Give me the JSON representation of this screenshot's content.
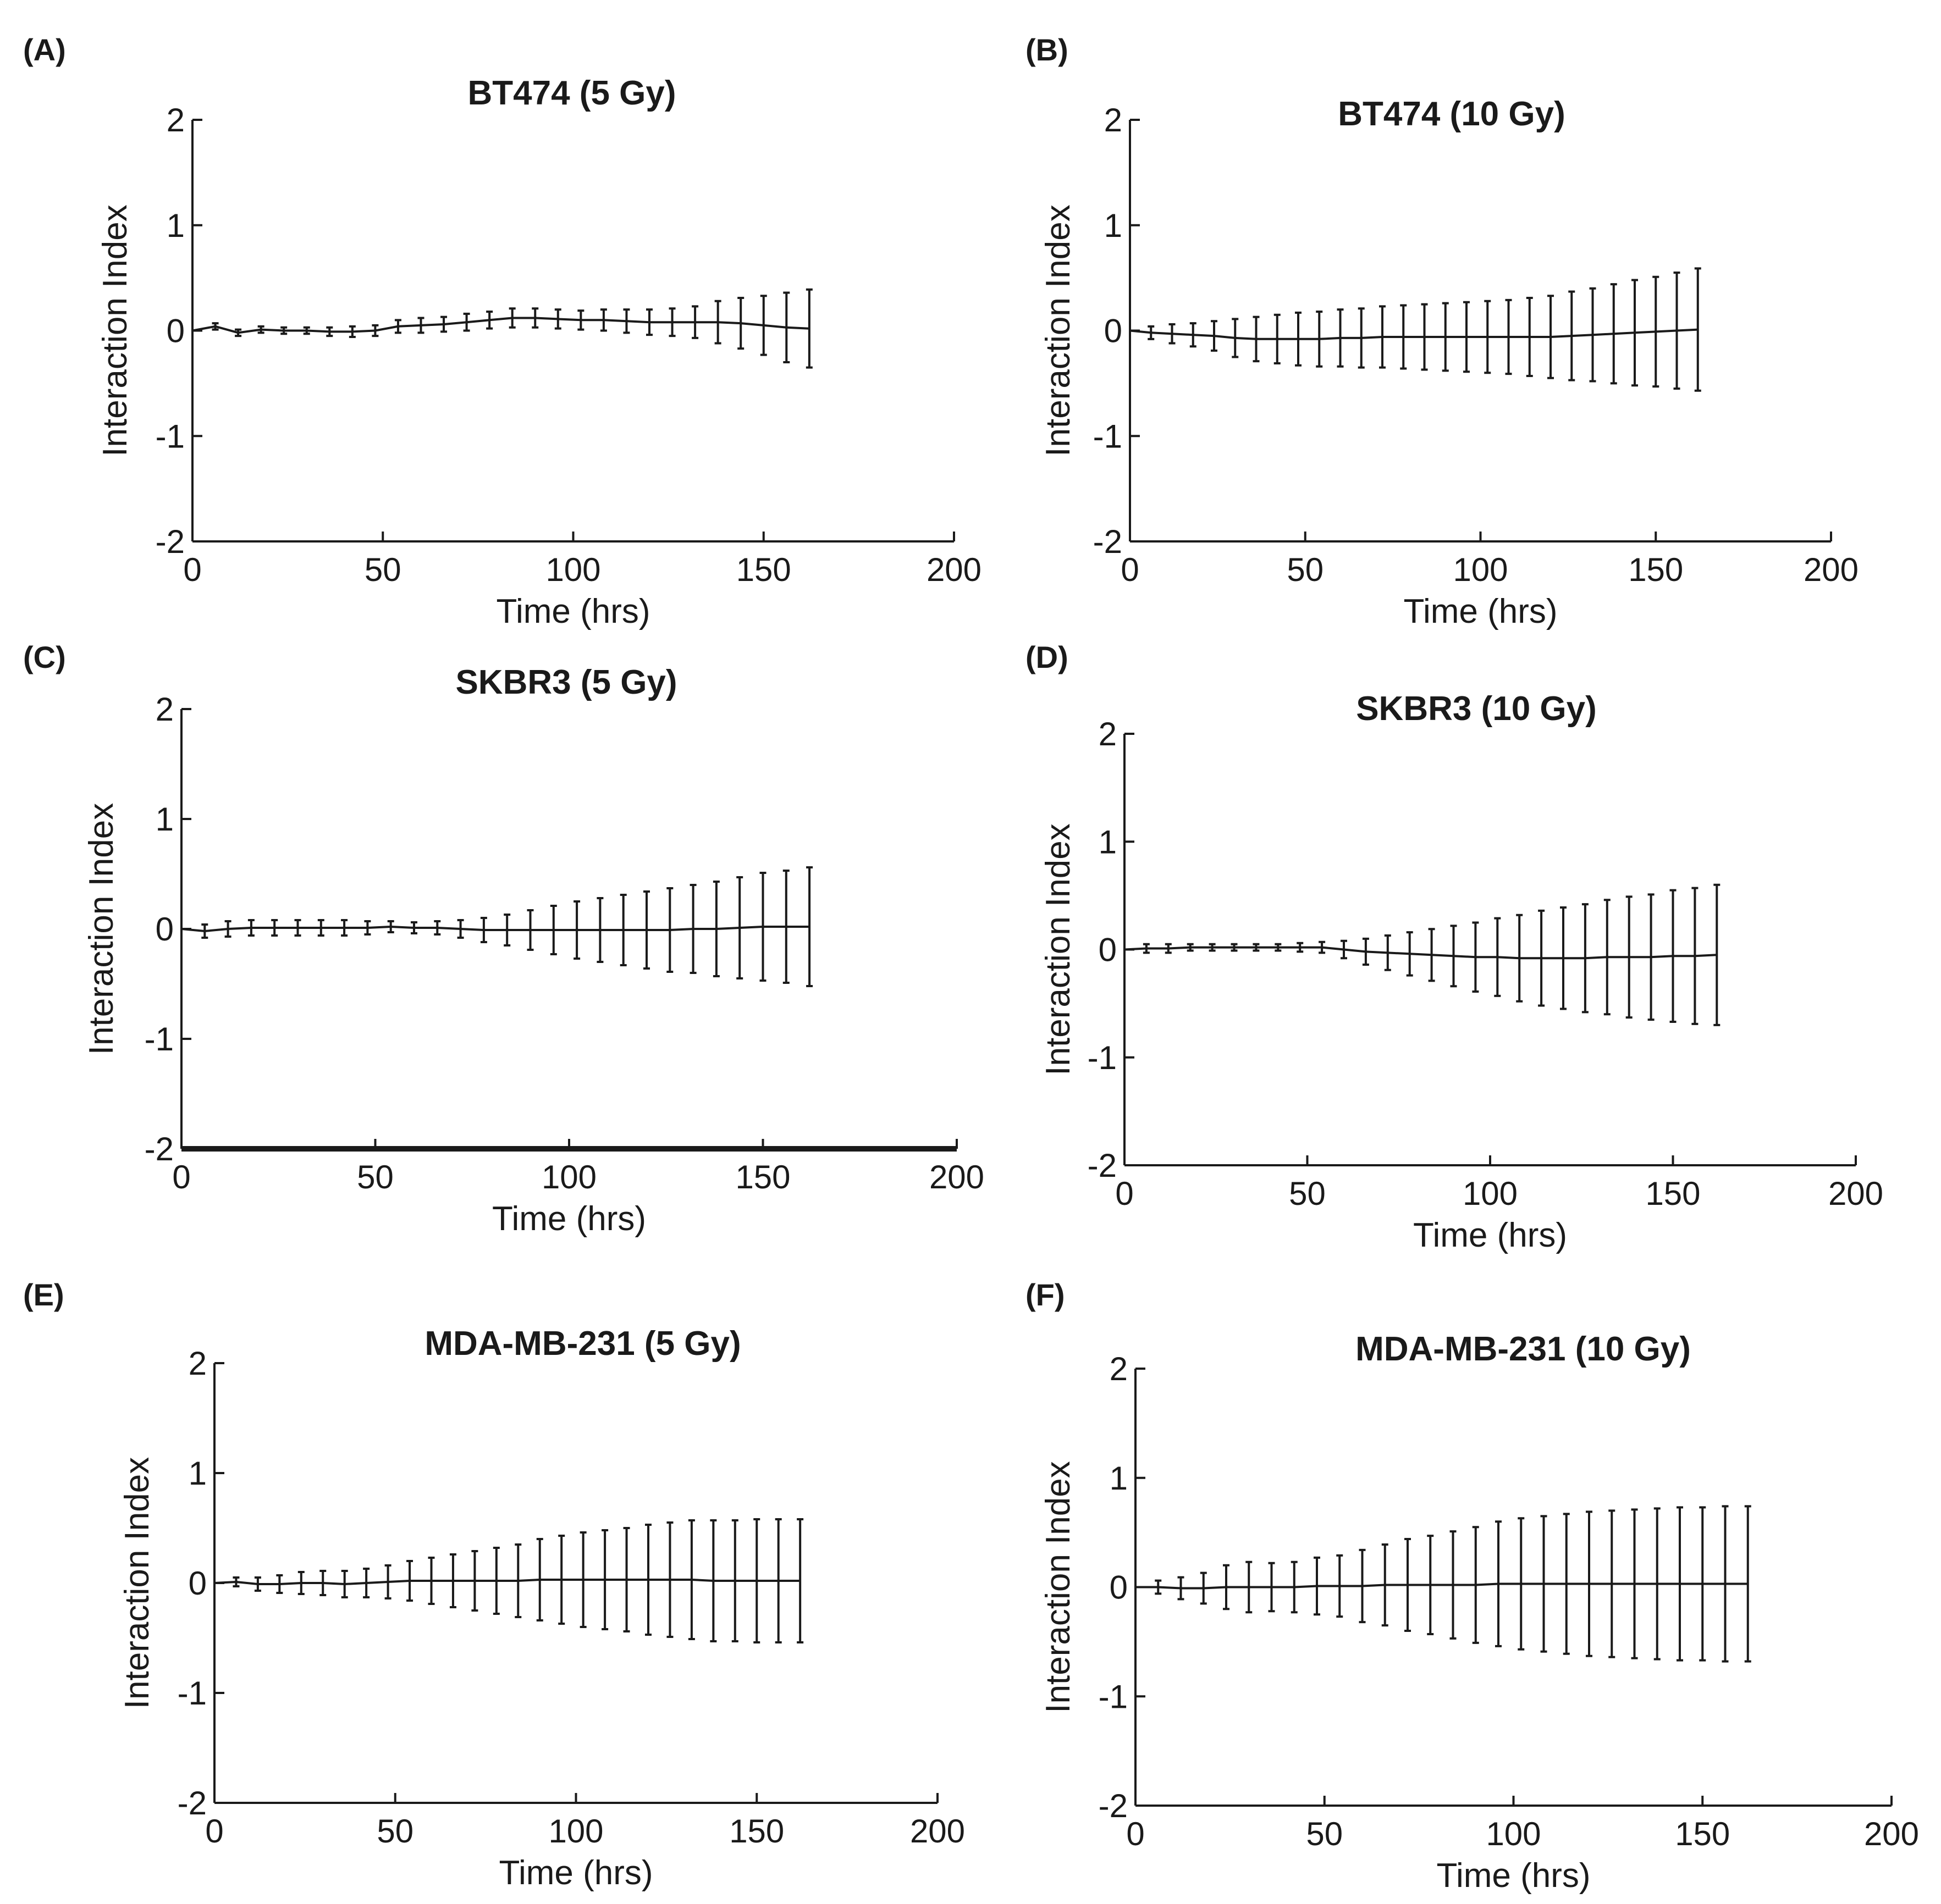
{
  "chart_data": [
    {
      "panel": "(A)",
      "type": "line",
      "title": "BT474 (5 Gy)",
      "xlabel": "Time (hrs)",
      "ylabel": "Interaction Index",
      "xlim": [
        0,
        200
      ],
      "ylim": [
        -2,
        2
      ],
      "xticks": [
        "0",
        "50",
        "100",
        "150",
        "200"
      ],
      "yticks": [
        "-2",
        "-1",
        "0",
        "1",
        "2"
      ],
      "grid": false,
      "x": [
        0,
        6,
        12,
        18,
        24,
        30,
        36,
        42,
        48,
        54,
        60,
        66,
        72,
        78,
        84,
        90,
        96,
        102,
        108,
        114,
        120,
        126,
        132,
        138,
        144,
        150,
        156,
        162
      ],
      "series": [
        {
          "values": [
            0.0,
            0.04,
            -0.02,
            0.01,
            0.0,
            0.0,
            -0.01,
            -0.01,
            0.0,
            0.04,
            0.05,
            0.06,
            0.08,
            0.1,
            0.12,
            0.12,
            0.11,
            0.1,
            0.1,
            0.09,
            0.08,
            0.08,
            0.08,
            0.08,
            0.07,
            0.05,
            0.03,
            0.02
          ],
          "errors": [
            0.0,
            0.03,
            0.03,
            0.03,
            0.03,
            0.03,
            0.04,
            0.05,
            0.05,
            0.06,
            0.07,
            0.07,
            0.08,
            0.08,
            0.09,
            0.09,
            0.09,
            0.09,
            0.1,
            0.11,
            0.12,
            0.13,
            0.15,
            0.2,
            0.24,
            0.28,
            0.33,
            0.37
          ]
        }
      ]
    },
    {
      "panel": "(B)",
      "type": "line",
      "title": "BT474 (10 Gy)",
      "xlabel": "Time (hrs)",
      "ylabel": "Interaction Index",
      "xlim": [
        0,
        200
      ],
      "ylim": [
        -2,
        2
      ],
      "xticks": [
        "0",
        "50",
        "100",
        "150",
        "200"
      ],
      "yticks": [
        "-2",
        "-1",
        "0",
        "1",
        "2"
      ],
      "grid": false,
      "x": [
        0,
        6,
        12,
        18,
        24,
        30,
        36,
        42,
        48,
        54,
        60,
        66,
        72,
        78,
        84,
        90,
        96,
        102,
        108,
        114,
        120,
        126,
        132,
        138,
        144,
        150,
        156,
        162
      ],
      "series": [
        {
          "values": [
            0.0,
            -0.02,
            -0.03,
            -0.04,
            -0.05,
            -0.07,
            -0.08,
            -0.08,
            -0.08,
            -0.08,
            -0.07,
            -0.07,
            -0.06,
            -0.06,
            -0.06,
            -0.06,
            -0.06,
            -0.06,
            -0.06,
            -0.06,
            -0.06,
            -0.05,
            -0.04,
            -0.03,
            -0.02,
            -0.01,
            0.0,
            0.01
          ],
          "errors": [
            0.0,
            0.06,
            0.09,
            0.11,
            0.14,
            0.18,
            0.21,
            0.23,
            0.25,
            0.26,
            0.27,
            0.28,
            0.29,
            0.3,
            0.31,
            0.32,
            0.33,
            0.34,
            0.35,
            0.37,
            0.39,
            0.42,
            0.44,
            0.47,
            0.5,
            0.52,
            0.55,
            0.58
          ]
        }
      ]
    },
    {
      "panel": "(C)",
      "type": "line",
      "title": "SKBR3 (5 Gy)",
      "xlabel": "Time (hrs)",
      "ylabel": "Interaction Index",
      "xlim": [
        0,
        200
      ],
      "ylim": [
        -2,
        2
      ],
      "xticks": [
        "0",
        "50",
        "100",
        "150",
        "200"
      ],
      "yticks": [
        "-2",
        "-1",
        "0",
        "1",
        "2"
      ],
      "grid": false,
      "x": [
        0,
        6,
        12,
        18,
        24,
        30,
        36,
        42,
        48,
        54,
        60,
        66,
        72,
        78,
        84,
        90,
        96,
        102,
        108,
        114,
        120,
        126,
        132,
        138,
        144,
        150,
        156,
        162
      ],
      "series": [
        {
          "values": [
            0.0,
            -0.02,
            0.0,
            0.01,
            0.01,
            0.01,
            0.01,
            0.01,
            0.01,
            0.02,
            0.01,
            0.01,
            0.0,
            -0.01,
            -0.01,
            -0.01,
            -0.01,
            -0.01,
            -0.01,
            -0.01,
            -0.01,
            -0.01,
            0.0,
            0.0,
            0.01,
            0.02,
            0.02,
            0.02
          ],
          "errors": [
            0.0,
            0.06,
            0.07,
            0.07,
            0.07,
            0.07,
            0.07,
            0.07,
            0.06,
            0.05,
            0.05,
            0.06,
            0.08,
            0.11,
            0.14,
            0.18,
            0.22,
            0.26,
            0.29,
            0.32,
            0.35,
            0.38,
            0.4,
            0.43,
            0.46,
            0.49,
            0.51,
            0.54
          ]
        }
      ]
    },
    {
      "panel": "(D)",
      "type": "line",
      "title": "SKBR3 (10 Gy)",
      "xlabel": "Time (hrs)",
      "ylabel": "Interaction Index",
      "xlim": [
        0,
        200
      ],
      "ylim": [
        -2,
        2
      ],
      "xticks": [
        "0",
        "50",
        "100",
        "150",
        "200"
      ],
      "yticks": [
        "-2",
        "-1",
        "0",
        "1",
        "2"
      ],
      "grid": false,
      "x": [
        0,
        6,
        12,
        18,
        24,
        30,
        36,
        42,
        48,
        54,
        60,
        66,
        72,
        78,
        84,
        90,
        96,
        102,
        108,
        114,
        120,
        126,
        132,
        138,
        144,
        150,
        156,
        162
      ],
      "series": [
        {
          "values": [
            0.0,
            0.01,
            0.01,
            0.02,
            0.02,
            0.02,
            0.02,
            0.02,
            0.02,
            0.02,
            0.0,
            -0.02,
            -0.03,
            -0.04,
            -0.05,
            -0.06,
            -0.07,
            -0.07,
            -0.08,
            -0.08,
            -0.08,
            -0.08,
            -0.07,
            -0.07,
            -0.07,
            -0.06,
            -0.06,
            -0.05
          ],
          "errors": [
            0.0,
            0.04,
            0.04,
            0.03,
            0.03,
            0.03,
            0.03,
            0.03,
            0.04,
            0.05,
            0.08,
            0.12,
            0.16,
            0.2,
            0.24,
            0.28,
            0.32,
            0.36,
            0.4,
            0.44,
            0.47,
            0.5,
            0.53,
            0.56,
            0.58,
            0.61,
            0.63,
            0.65
          ]
        }
      ]
    },
    {
      "panel": "(E)",
      "type": "line",
      "title": "MDA-MB-231 (5 Gy)",
      "xlabel": "Time (hrs)",
      "ylabel": "Interaction Index",
      "xlim": [
        0,
        200
      ],
      "ylim": [
        -2,
        2
      ],
      "xticks": [
        "0",
        "50",
        "100",
        "150",
        "200"
      ],
      "yticks": [
        "-2",
        "-1",
        "0",
        "1",
        "2"
      ],
      "grid": false,
      "x": [
        0,
        6,
        12,
        18,
        24,
        30,
        36,
        42,
        48,
        54,
        60,
        66,
        72,
        78,
        84,
        90,
        96,
        102,
        108,
        114,
        120,
        126,
        132,
        138,
        144,
        150,
        156,
        162
      ],
      "series": [
        {
          "values": [
            0.0,
            0.01,
            -0.01,
            -0.01,
            0.0,
            0.0,
            -0.01,
            0.0,
            0.01,
            0.02,
            0.02,
            0.02,
            0.02,
            0.02,
            0.02,
            0.03,
            0.03,
            0.03,
            0.03,
            0.03,
            0.03,
            0.03,
            0.03,
            0.02,
            0.02,
            0.02,
            0.02,
            0.02
          ],
          "errors": [
            0.0,
            0.04,
            0.06,
            0.08,
            0.1,
            0.11,
            0.12,
            0.13,
            0.15,
            0.18,
            0.21,
            0.24,
            0.27,
            0.3,
            0.33,
            0.37,
            0.4,
            0.43,
            0.45,
            0.47,
            0.5,
            0.52,
            0.54,
            0.55,
            0.55,
            0.56,
            0.56,
            0.56
          ]
        }
      ]
    },
    {
      "panel": "(F)",
      "type": "line",
      "title": "MDA-MB-231 (10 Gy)",
      "xlabel": "Time (hrs)",
      "ylabel": "Interaction Index",
      "xlim": [
        0,
        200
      ],
      "ylim": [
        -2,
        2
      ],
      "xticks": [
        "0",
        "50",
        "100",
        "150",
        "200"
      ],
      "yticks": [
        "-2",
        "-1",
        "0",
        "1",
        "2"
      ],
      "grid": false,
      "x": [
        0,
        6,
        12,
        18,
        24,
        30,
        36,
        42,
        48,
        54,
        60,
        66,
        72,
        78,
        84,
        90,
        96,
        102,
        108,
        114,
        120,
        126,
        132,
        138,
        144,
        150,
        156,
        162
      ],
      "series": [
        {
          "values": [
            0.0,
            0.0,
            -0.01,
            -0.01,
            0.0,
            0.0,
            0.0,
            0.0,
            0.01,
            0.01,
            0.01,
            0.02,
            0.02,
            0.02,
            0.02,
            0.02,
            0.03,
            0.03,
            0.03,
            0.03,
            0.03,
            0.03,
            0.03,
            0.03,
            0.03,
            0.03,
            0.03,
            0.03
          ],
          "errors": [
            0.0,
            0.06,
            0.1,
            0.14,
            0.2,
            0.23,
            0.22,
            0.23,
            0.26,
            0.28,
            0.33,
            0.37,
            0.42,
            0.45,
            0.49,
            0.53,
            0.57,
            0.6,
            0.62,
            0.64,
            0.66,
            0.67,
            0.68,
            0.69,
            0.7,
            0.7,
            0.71,
            0.71
          ]
        }
      ]
    }
  ]
}
